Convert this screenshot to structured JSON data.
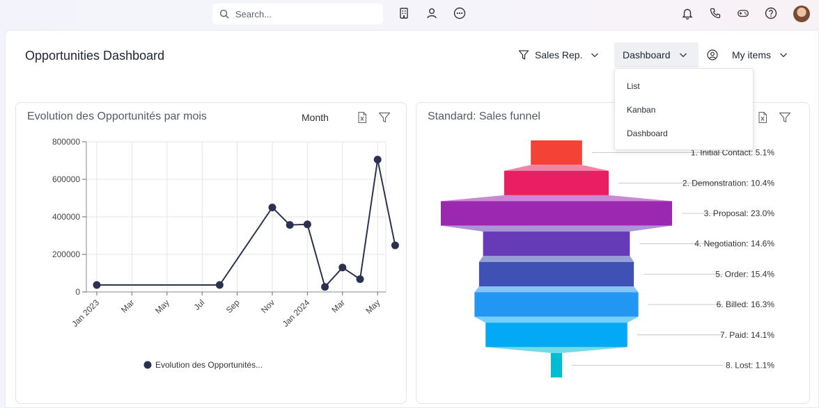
{
  "topbar": {
    "search_placeholder": "Search...",
    "icons": [
      "search-icon",
      "building-icon",
      "user-icon",
      "more-icon",
      "bell-icon",
      "phone-icon",
      "gamepad-icon",
      "help-icon",
      "avatar"
    ]
  },
  "header": {
    "title": "Opportunities Dashboard",
    "filter_label": "Sales Rep.",
    "view_label": "Dashboard",
    "items_label": "My items"
  },
  "view_menu": {
    "items": [
      "List",
      "Kanban",
      "Dashboard"
    ]
  },
  "left_panel": {
    "title": "Evolution des Opportunités par mois",
    "period_label": "Month",
    "legend_label": "Evolution des Opportunités..."
  },
  "right_panel": {
    "title": "Standard: Sales funnel"
  },
  "chart_data": [
    {
      "type": "line",
      "title": "Evolution des Opportunités par mois",
      "x_tick_labels": [
        "Jan 2023",
        "Mar",
        "May",
        "Jul",
        "Sep",
        "Nov",
        "Jan 2024",
        "Mar",
        "May"
      ],
      "y_tick_labels": [
        "0",
        "200000",
        "400000",
        "600000",
        "800000"
      ],
      "ylim": [
        0,
        800000
      ],
      "series": [
        {
          "name": "Evolution des Opportunités...",
          "color": "#2b3150",
          "points": [
            {
              "x": "2023-01",
              "y": 37000
            },
            {
              "x": "2023-08",
              "y": 37000
            },
            {
              "x": "2023-11",
              "y": 450000
            },
            {
              "x": "2023-12",
              "y": 357000
            },
            {
              "x": "2024-01",
              "y": 360000
            },
            {
              "x": "2024-02",
              "y": 27000
            },
            {
              "x": "2024-03",
              "y": 130000
            },
            {
              "x": "2024-04",
              "y": 68000
            },
            {
              "x": "2024-05",
              "y": 705000
            },
            {
              "x": "2024-06",
              "y": 248000
            }
          ]
        }
      ],
      "grid": true,
      "legend": "bottom-center"
    },
    {
      "type": "funnel",
      "title": "Standard: Sales funnel",
      "stages": [
        {
          "label": "1. Initial Contact: 5.1%",
          "value": 5.1,
          "color": "#f44336"
        },
        {
          "label": "2. Demonstration: 10.4%",
          "value": 10.4,
          "color": "#e91e63"
        },
        {
          "label": "3. Proposal: 23.0%",
          "value": 23.0,
          "color": "#9c27b0"
        },
        {
          "label": "4. Negotiation: 14.6%",
          "value": 14.6,
          "color": "#673ab7"
        },
        {
          "label": "5. Order: 15.4%",
          "value": 15.4,
          "color": "#3f51b5"
        },
        {
          "label": "6. Billed: 16.3%",
          "value": 16.3,
          "color": "#2196f3"
        },
        {
          "label": "7. Paid: 14.1%",
          "value": 14.1,
          "color": "#03a9f4"
        },
        {
          "label": "8. Lost: 1.1%",
          "value": 1.1,
          "color": "#00bcd4"
        }
      ]
    }
  ]
}
